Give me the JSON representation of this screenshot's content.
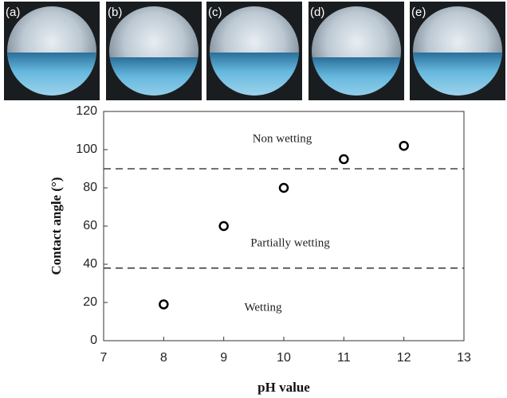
{
  "panel_labels": [
    "(a)",
    "(b)",
    "(c)",
    "(d)",
    "(e)"
  ],
  "chart_data": {
    "type": "scatter",
    "x_label": "pH value",
    "y_label": "Contact angle (°)",
    "x": [
      8,
      9,
      10,
      11,
      12
    ],
    "values": [
      19,
      60,
      80,
      95,
      102
    ],
    "xlim": [
      7,
      13
    ],
    "xticks": [
      7,
      8,
      9,
      10,
      11,
      12,
      13
    ],
    "ylim": [
      0,
      120
    ],
    "yticks": [
      0,
      20,
      40,
      60,
      80,
      100,
      120
    ],
    "reference_lines": [
      90,
      38
    ],
    "annotations": [
      "Non wetting",
      "Partially wetting",
      "Wetting"
    ],
    "marker_color": "#000000"
  }
}
